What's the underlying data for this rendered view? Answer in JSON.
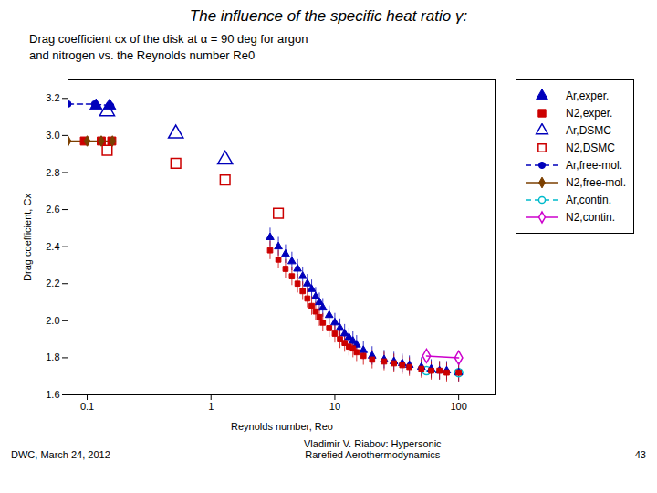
{
  "chart_data": {
    "type": "line",
    "title": "The influence of the specific heat ratio γ:",
    "subtitle": "Drag coefficient cx of the disk at α = 90 deg for argon\nand nitrogen vs. the Reynolds number Re0",
    "annotations": [
      "DWC, March 24, 2012",
      "Vladimir V. Riabov: Hypersonic\nRarefied Aerothermodynamics",
      "43"
    ],
    "xlabel": "Reynolds number, Reo",
    "ylabel": "Drag coefficient, Cx",
    "log": "x",
    "grid": false,
    "legend": "right",
    "xlim": [
      0.07,
      200
    ],
    "ylim": [
      1.6,
      3.3
    ],
    "xticks": [
      0.1,
      1,
      10,
      100
    ],
    "yticks": [
      1.6,
      1.8,
      {
        "value": 2.0,
        "label": "2.0"
      },
      2.2,
      2.4,
      2.6,
      2.8,
      {
        "value": 3.0,
        "label": "3.0"
      },
      3.2
    ],
    "series": [
      {
        "name": "Ar,exper.",
        "type": "scatter",
        "color": "#0000BB",
        "marker": "triangle",
        "line_style": "none",
        "x": [
          0.118,
          0.152
        ],
        "values": [
          3.16,
          3.16
        ]
      },
      {
        "name": "N2,exper.",
        "type": "scatter",
        "color": "#CC0000",
        "marker": "square",
        "line_style": "none",
        "x": [
          0.095,
          0.13,
          0.158
        ],
        "values": [
          2.97,
          2.97,
          2.97
        ]
      },
      {
        "name": "Ar,DSMC",
        "type": "scatter",
        "color": "#0000BB",
        "marker": "triangle-open",
        "line_style": "none",
        "x": [
          0.145,
          0.52,
          1.3
        ],
        "values": [
          3.13,
          3.01,
          2.87
        ]
      },
      {
        "name": "N2,DSMC",
        "type": "scatter",
        "color": "#CC0000",
        "marker": "square-open",
        "line_style": "none",
        "x": [
          0.145,
          0.52,
          1.3,
          3.5
        ],
        "values": [
          2.92,
          2.85,
          2.76,
          2.58
        ]
      },
      {
        "name": "Ar,free-mol.",
        "type": "line",
        "color": "#0000BB",
        "marker": "circle",
        "line_style": "dashed",
        "x": [
          0.07,
          0.115,
          0.155
        ],
        "values": [
          3.17,
          3.17,
          3.16
        ]
      },
      {
        "name": "N2,free-mol.",
        "type": "line",
        "color": "#7B3F00",
        "marker": "diamond",
        "line_style": "solid",
        "x": [
          0.07,
          0.1,
          0.13,
          0.16
        ],
        "values": [
          2.97,
          2.97,
          2.97,
          2.97
        ]
      },
      {
        "name": "Ar,contin.",
        "type": "line",
        "color": "#00BBCC",
        "marker": "circle-open",
        "line_style": "dashed",
        "x": [
          55,
          100
        ],
        "values": [
          1.73,
          1.72
        ]
      },
      {
        "name": "N2,contin.",
        "type": "line",
        "color": "#CC00CC",
        "marker": "diamond-open",
        "line_style": "solid",
        "x": [
          55,
          100
        ],
        "values": [
          1.81,
          1.8
        ]
      },
      {
        "type": "scatter",
        "color": "#0000BB",
        "marker": "triangle",
        "line_style": "none",
        "error": 0.05,
        "x": [
          3.0,
          3.5,
          4.0,
          4.5,
          5.0,
          5.5,
          6.0,
          6.5,
          7.0,
          7.5,
          8.0,
          9.0,
          10.0,
          11.0,
          12.0,
          13.0,
          14.0,
          15.0,
          17.0,
          20.0,
          25.0,
          30.0,
          35.0,
          40.0,
          50.0,
          60.0,
          70.0,
          80.0,
          100.0
        ],
        "values": [
          2.45,
          2.4,
          2.36,
          2.32,
          2.28,
          2.24,
          2.2,
          2.17,
          2.13,
          2.1,
          2.07,
          2.03,
          1.99,
          1.96,
          1.93,
          1.91,
          1.89,
          1.87,
          1.84,
          1.81,
          1.79,
          1.78,
          1.77,
          1.76,
          1.75,
          1.74,
          1.73,
          1.73,
          1.72
        ]
      },
      {
        "type": "scatter",
        "color": "#CC0000",
        "marker": "square",
        "line_style": "none",
        "error": 0.05,
        "x": [
          3.0,
          3.5,
          4.0,
          4.5,
          5.0,
          5.5,
          6.0,
          6.5,
          7.0,
          7.5,
          8.0,
          9.0,
          10.0,
          11.0,
          12.0,
          13.0,
          14.0,
          15.0,
          17.0,
          20.0,
          25.0,
          30.0,
          35.0,
          40.0,
          50.0,
          60.0,
          70.0,
          80.0,
          100.0
        ],
        "values": [
          2.38,
          2.33,
          2.28,
          2.24,
          2.2,
          2.16,
          2.12,
          2.08,
          2.05,
          2.02,
          1.99,
          1.96,
          1.93,
          1.9,
          1.88,
          1.86,
          1.85,
          1.83,
          1.81,
          1.79,
          1.78,
          1.77,
          1.76,
          1.75,
          1.74,
          1.73,
          1.73,
          1.72,
          1.72
        ]
      }
    ]
  }
}
